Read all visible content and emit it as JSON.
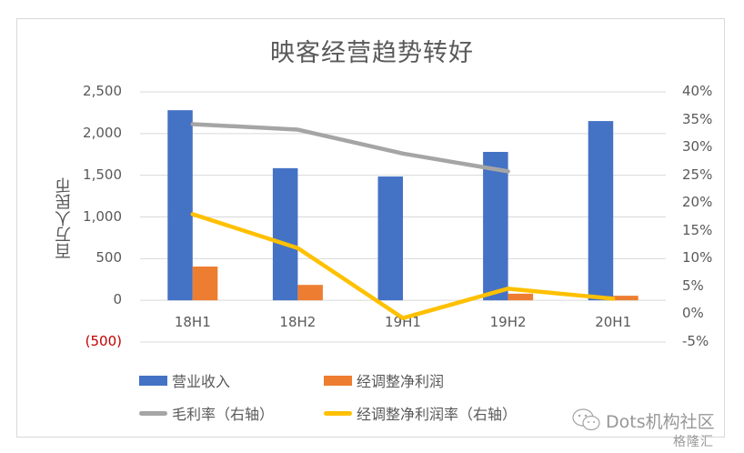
{
  "chart_data": {
    "type": "bar",
    "title": "映客经营趋势转好",
    "xlabel": "",
    "ylabel": "百万人民币",
    "y2label": "",
    "categories": [
      "18H1",
      "18H2",
      "19H1",
      "19H2",
      "20H1"
    ],
    "ylim": [
      -500,
      2500
    ],
    "y_ticks": [
      "2,500",
      "2,000",
      "1,500",
      "1,000",
      "500",
      "0",
      "(500)"
    ],
    "y2lim": [
      -0.05,
      0.4
    ],
    "y2_ticks": [
      "40%",
      "35%",
      "30%",
      "25%",
      "20%",
      "15%",
      "10%",
      "5%",
      "0%",
      "-5%"
    ],
    "grid": true,
    "legend_position": "bottom",
    "series": [
      {
        "name": "营业收入",
        "type": "bar",
        "axis": "left",
        "color": "#4472c4",
        "values": [
          2280,
          1585,
          1485,
          1780,
          2150
        ]
      },
      {
        "name": "经调整净利润",
        "type": "bar",
        "axis": "left",
        "color": "#ed7d31",
        "values": [
          405,
          185,
          0,
          80,
          55
        ]
      },
      {
        "name": "毛利率（右轴）",
        "type": "line",
        "axis": "right",
        "color": "#a5a5a5",
        "values": [
          0.342,
          0.332,
          0.289,
          0.257,
          null
        ]
      },
      {
        "name": "经调整净利润率（右轴）",
        "type": "line",
        "axis": "right",
        "color": "#ffc000",
        "values": [
          0.18,
          0.119,
          -0.007,
          0.046,
          0.028
        ]
      }
    ]
  },
  "legend": [
    {
      "label": "营业收入",
      "kind": "box",
      "color": "#4472c4"
    },
    {
      "label": "经调整净利润",
      "kind": "box",
      "color": "#ed7d31"
    },
    {
      "label": "毛利率（右轴）",
      "kind": "line",
      "color": "#a5a5a5"
    },
    {
      "label": "经调整净利润率（右轴）",
      "kind": "line",
      "color": "#ffc000"
    }
  ],
  "watermark": {
    "text": "Dots机构社区",
    "logo": "格隆汇"
  }
}
